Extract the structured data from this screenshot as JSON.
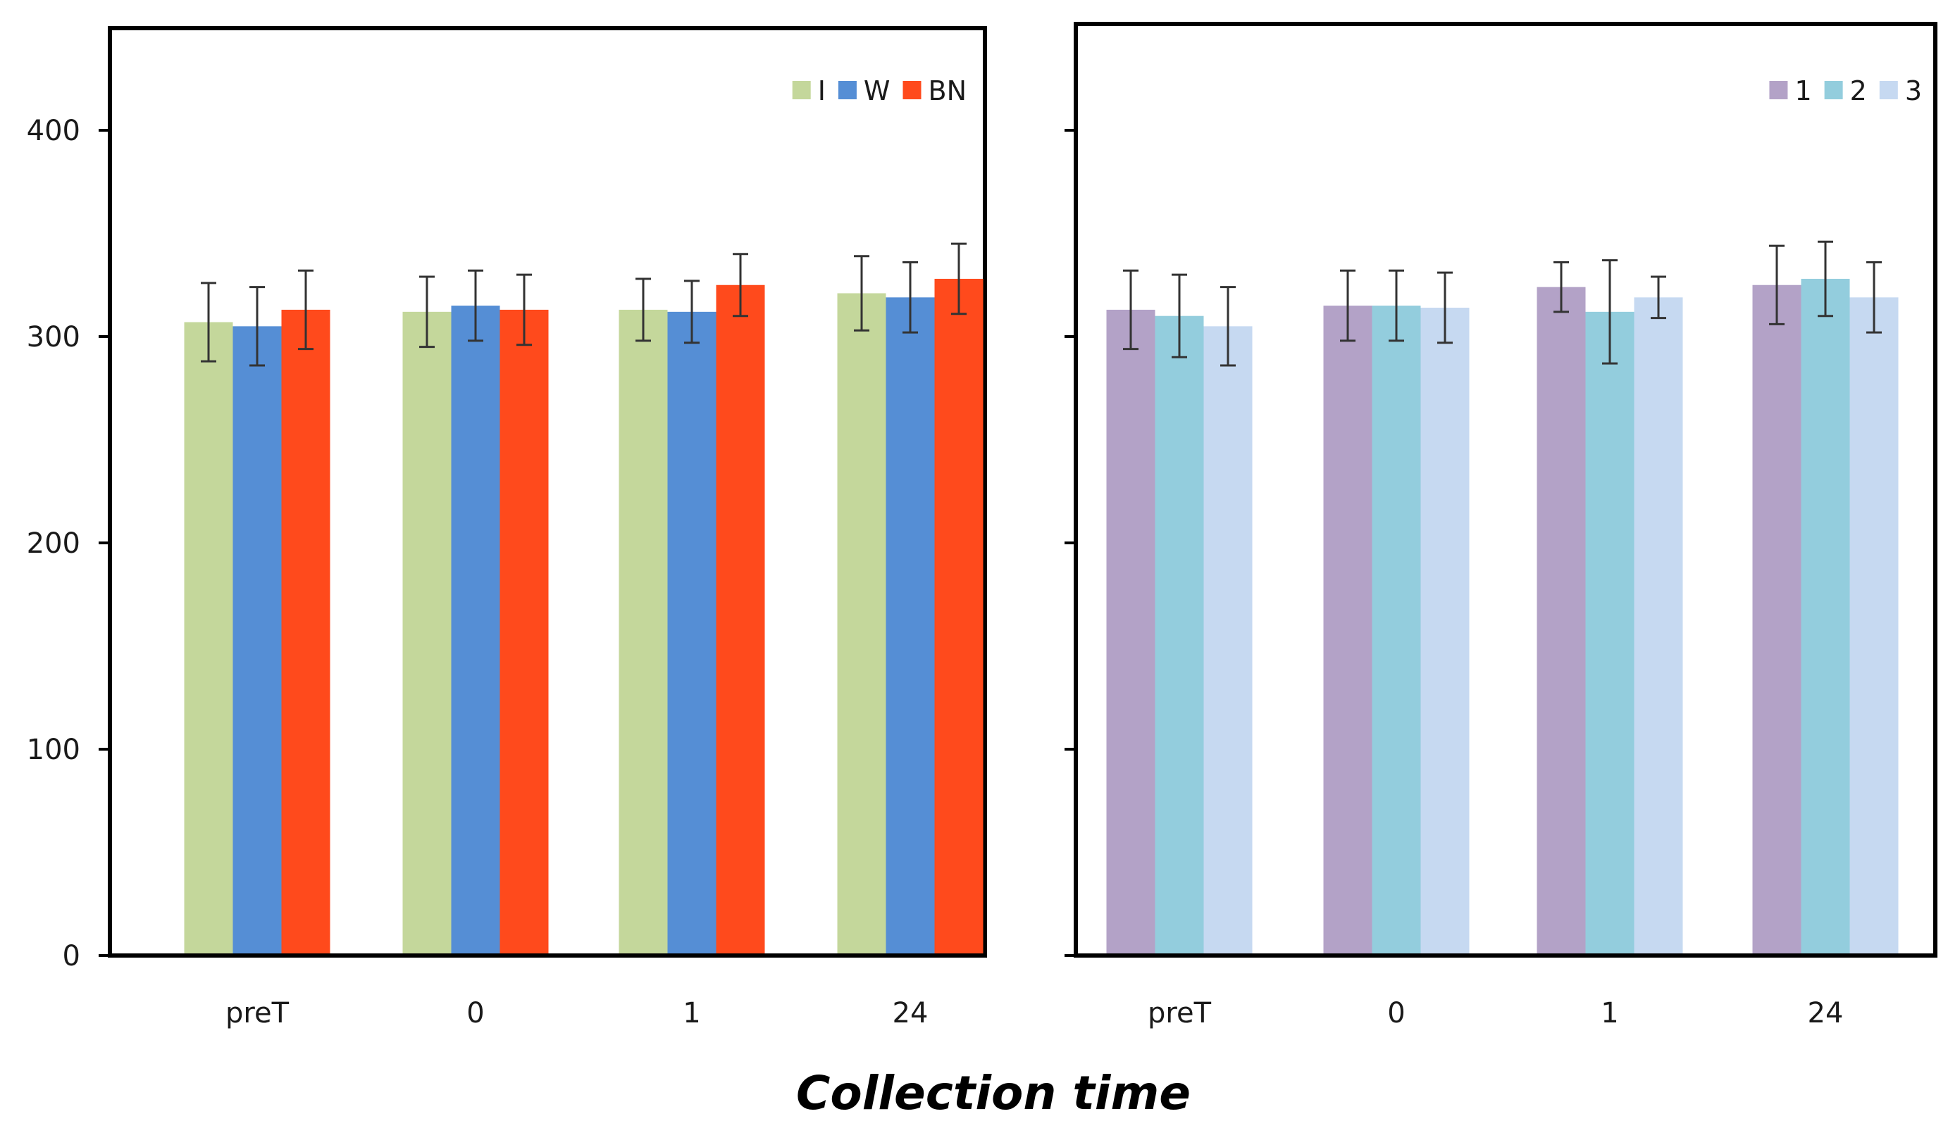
{
  "chart_data": [
    {
      "type": "bar",
      "panel": "left",
      "categories": [
        "preT",
        "0",
        "1",
        "24"
      ],
      "ylim": [
        0,
        450
      ],
      "yticks": [
        0,
        100,
        200,
        300,
        400
      ],
      "ytick_labels": [
        "0",
        "100",
        "200",
        "300",
        "400"
      ],
      "legend_position": "top-right",
      "series": [
        {
          "name": "I",
          "color": "#c4d79b",
          "values": [
            307,
            312,
            313,
            321
          ],
          "errors": [
            19,
            17,
            15,
            18
          ]
        },
        {
          "name": "W",
          "color": "#558ed5",
          "values": [
            305,
            315,
            312,
            319
          ],
          "errors": [
            19,
            17,
            15,
            17
          ]
        },
        {
          "name": "BN",
          "color": "#ff4a1c",
          "values": [
            313,
            313,
            325,
            328
          ],
          "errors": [
            19,
            17,
            15,
            17
          ]
        }
      ]
    },
    {
      "type": "bar",
      "panel": "right",
      "categories": [
        "preT",
        "0",
        "1",
        "24"
      ],
      "ylim": [
        0,
        450
      ],
      "yticks": [
        0,
        100,
        200,
        300,
        400
      ],
      "legend_position": "top-right",
      "series": [
        {
          "name": "1",
          "color": "#b3a2c7",
          "values": [
            313,
            315,
            324,
            325
          ],
          "errors": [
            19,
            17,
            12,
            19
          ]
        },
        {
          "name": "2",
          "color": "#93cddd",
          "values": [
            310,
            315,
            312,
            328
          ],
          "errors": [
            20,
            17,
            25,
            18
          ]
        },
        {
          "name": "3",
          "color": "#c6d9f1",
          "values": [
            305,
            314,
            319,
            319
          ],
          "errors": [
            19,
            17,
            10,
            17
          ]
        }
      ]
    }
  ],
  "xlabel": "Collection time"
}
